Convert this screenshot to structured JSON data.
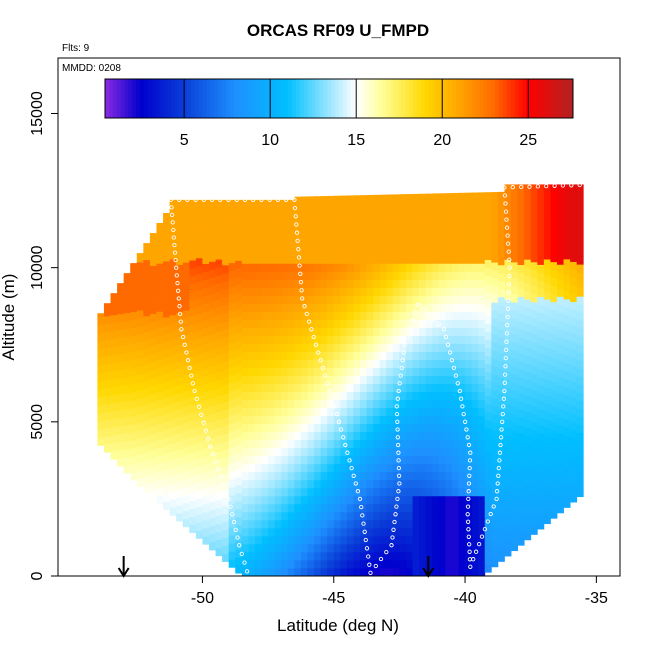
{
  "chart_data": {
    "type": "heatmap",
    "title": "ORCAS RF09 U_FMPD",
    "flights_label": "Flts: 9",
    "date_label": "MMDD: 0208",
    "xlabel": "Latitude (deg N)",
    "ylabel": "Altitude (m)",
    "xlim": [
      -55.5,
      -34.1
    ],
    "ylim": [
      0,
      16800
    ],
    "x_ticks": [
      -50,
      -45,
      -40,
      -35
    ],
    "x_tick_labels": [
      "-50",
      "-45",
      "-40",
      "-35"
    ],
    "y_ticks": [
      0,
      5000,
      10000,
      15000
    ],
    "y_tick_labels": [
      "0",
      "5000",
      "10000",
      "15000"
    ],
    "colorbar": {
      "min": 0.4,
      "max": 27.6,
      "ticks": [
        5,
        10,
        15,
        20,
        25
      ],
      "tick_labels": [
        "5",
        "10",
        "15",
        "20",
        "25"
      ],
      "colors": [
        "#8a2be2",
        "#0000cd",
        "#0a3fd8",
        "#1e90ff",
        "#00bfff",
        "#ffffff",
        "#ffff99",
        "#ffd700",
        "#ffa500",
        "#ff6a00",
        "#ff0000",
        "#b22222"
      ],
      "color_stops": [
        0.4,
        2.5,
        5,
        8,
        11,
        15,
        16.5,
        19,
        21,
        23,
        25,
        27.6
      ]
    },
    "grid": false,
    "markers": {
      "arrows_at_latitude": [
        -53.0,
        -41.4
      ]
    },
    "flight_track": [
      [
        -48.3,
        150
      ],
      [
        -48.6,
        1000
      ],
      [
        -49.0,
        2500
      ],
      [
        -49.7,
        4200
      ],
      [
        -50.3,
        6000
      ],
      [
        -50.8,
        8000
      ],
      [
        -51.0,
        10000
      ],
      [
        -51.2,
        12200
      ],
      [
        -46.5,
        12200
      ],
      [
        -46.2,
        9000
      ],
      [
        -45.5,
        7000
      ],
      [
        -44.8,
        5000
      ],
      [
        -44.0,
        2500
      ],
      [
        -43.6,
        100
      ],
      [
        -42.8,
        1000
      ],
      [
        -42.5,
        3000
      ],
      [
        -42.6,
        5500
      ],
      [
        -42.3,
        7500
      ],
      [
        -41.8,
        8800
      ],
      [
        -40.8,
        8000
      ],
      [
        -40.2,
        6000
      ],
      [
        -39.8,
        4000
      ],
      [
        -39.9,
        2000
      ],
      [
        -39.8,
        300
      ],
      [
        -38.8,
        2500
      ],
      [
        -38.5,
        6000
      ],
      [
        -38.3,
        10000
      ],
      [
        -38.5,
        12600
      ],
      [
        -35.0,
        12700
      ]
    ],
    "field_description_values": {
      "low_left_speed": 12,
      "upper_left_speed": 23,
      "top_speed": 21,
      "right_mid_speed": 8,
      "southeast_low_speed": 2,
      "north_top_speed": 26
    }
  }
}
